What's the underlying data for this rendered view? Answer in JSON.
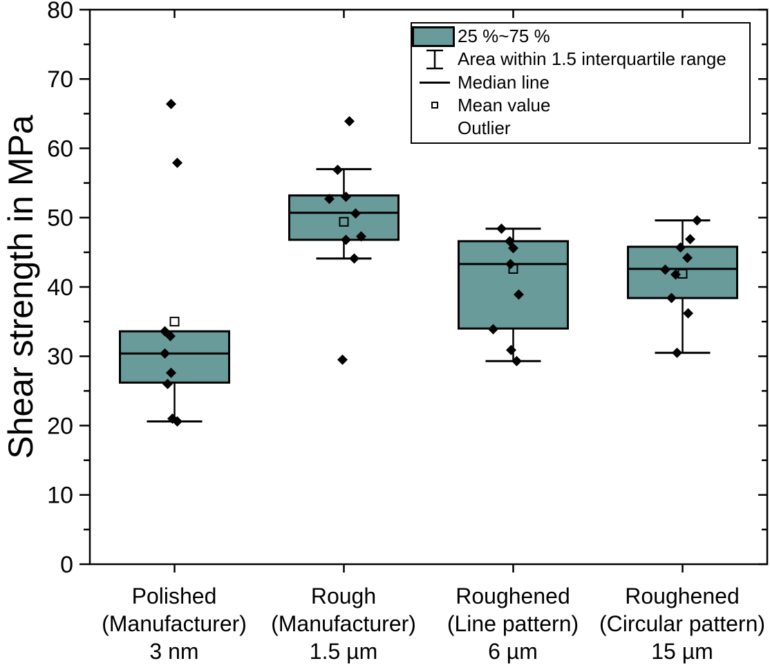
{
  "figure": {
    "background": "#ffffff"
  },
  "legend": {
    "position": "top-right",
    "items": [
      {
        "glyph": "box-swatch",
        "label": "25 %~75 %"
      },
      {
        "glyph": "error-bar",
        "label": "Area within 1.5 interquartile range"
      },
      {
        "glyph": "median-line",
        "label": "Median line"
      },
      {
        "glyph": "mean-square",
        "label": "Mean value"
      },
      {
        "glyph": "none",
        "label": "Outlier"
      }
    ]
  },
  "chart_data": {
    "type": "boxplot",
    "title": "",
    "xlabel": "",
    "ylabel": "Shear strength in MPa",
    "ylim": [
      0,
      80
    ],
    "ytick_major": 10,
    "ytick_minor": 5,
    "grid": false,
    "colors": {
      "box_fill": "#699b9a",
      "stroke": "#000000"
    },
    "categories": [
      {
        "label_lines": [
          "Polished",
          "(Manufacturer)",
          "3 nm"
        ],
        "q1": 26.2,
        "median": 30.4,
        "q3": 33.6,
        "whisker_low": 20.6,
        "whisker_high": null,
        "mean": 35.0,
        "outliers": [
          66.4,
          57.9
        ],
        "points": [
          {
            "v": 66.4,
            "dx": -5
          },
          {
            "v": 57.9,
            "dx": 4
          },
          {
            "v": 33.6,
            "dx": -14
          },
          {
            "v": 32.9,
            "dx": -6
          },
          {
            "v": 30.4,
            "dx": -14
          },
          {
            "v": 27.6,
            "dx": -5
          },
          {
            "v": 26.0,
            "dx": -10
          },
          {
            "v": 21.0,
            "dx": -3
          },
          {
            "v": 20.6,
            "dx": 4
          }
        ]
      },
      {
        "label_lines": [
          "Rough",
          "(Manufacturer)",
          "1.5 µm"
        ],
        "q1": 46.8,
        "median": 50.7,
        "q3": 53.2,
        "whisker_low": 44.1,
        "whisker_high": 57.0,
        "mean": 49.4,
        "outliers": [
          63.9,
          29.5
        ],
        "points": [
          {
            "v": 63.9,
            "dx": 8
          },
          {
            "v": 56.9,
            "dx": -9
          },
          {
            "v": 53.0,
            "dx": 3
          },
          {
            "v": 52.7,
            "dx": -21
          },
          {
            "v": 50.6,
            "dx": 17
          },
          {
            "v": 47.3,
            "dx": 25
          },
          {
            "v": 46.8,
            "dx": 3
          },
          {
            "v": 44.1,
            "dx": 15
          },
          {
            "v": 29.5,
            "dx": -2
          }
        ]
      },
      {
        "label_lines": [
          "Roughened",
          "(Line pattern)",
          "6 µm"
        ],
        "q1": 34.0,
        "median": 43.3,
        "q3": 46.6,
        "whisker_low": 29.3,
        "whisker_high": 48.4,
        "mean": 42.6,
        "outliers": [],
        "points": [
          {
            "v": 48.4,
            "dx": -17
          },
          {
            "v": 46.6,
            "dx": -5
          },
          {
            "v": 45.6,
            "dx": 0
          },
          {
            "v": 43.3,
            "dx": -4
          },
          {
            "v": 38.9,
            "dx": 8
          },
          {
            "v": 33.9,
            "dx": -29
          },
          {
            "v": 30.9,
            "dx": -3
          },
          {
            "v": 29.3,
            "dx": 5
          }
        ]
      },
      {
        "label_lines": [
          "Roughened",
          "(Circular pattern)",
          "15 µm"
        ],
        "q1": 38.4,
        "median": 42.6,
        "q3": 45.8,
        "whisker_low": 30.5,
        "whisker_high": 49.6,
        "mean": 41.9,
        "outliers": [],
        "points": [
          {
            "v": 49.6,
            "dx": 21
          },
          {
            "v": 46.9,
            "dx": 11
          },
          {
            "v": 45.7,
            "dx": -3
          },
          {
            "v": 44.2,
            "dx": 7
          },
          {
            "v": 42.5,
            "dx": -25
          },
          {
            "v": 41.8,
            "dx": -10
          },
          {
            "v": 38.4,
            "dx": -16
          },
          {
            "v": 36.2,
            "dx": 8
          },
          {
            "v": 30.5,
            "dx": -8
          }
        ]
      }
    ]
  }
}
